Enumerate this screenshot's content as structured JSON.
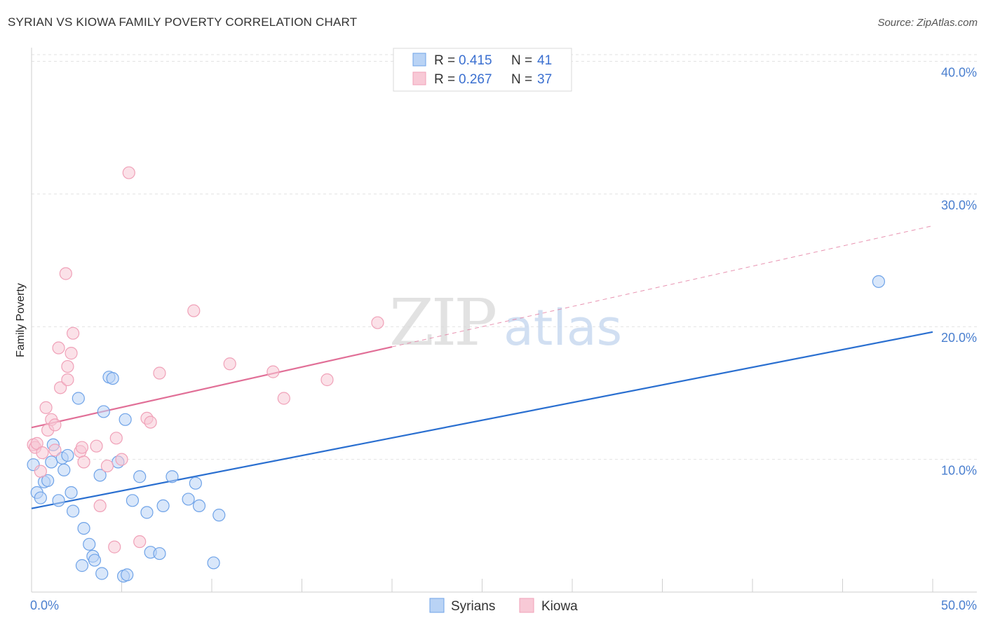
{
  "title": "SYRIAN VS KIOWA FAMILY POVERTY CORRELATION CHART",
  "source": "Source: ZipAtlas.com",
  "watermark": {
    "zip": "ZIP",
    "atlas": "atlas"
  },
  "chart_data": {
    "type": "scatter",
    "title": "SYRIAN VS KIOWA FAMILY POVERTY CORRELATION CHART",
    "xlabel": "",
    "ylabel": "Family Poverty",
    "xlim": [
      0,
      50
    ],
    "ylim": [
      0,
      40.5
    ],
    "x_tick_labels": [
      "0.0%",
      "50.0%"
    ],
    "y_ticks": [
      10,
      20,
      30,
      40
    ],
    "y_tick_labels": [
      "10.0%",
      "20.0%",
      "30.0%",
      "40.0%"
    ],
    "grid": true,
    "legend_position": "top-center",
    "legend": [
      {
        "r_label": "R =",
        "r_value": "0.415",
        "n_label": "N =",
        "n_value": "41"
      },
      {
        "r_label": "R =",
        "r_value": "0.267",
        "n_label": "N =",
        "n_value": "37"
      }
    ],
    "series": [
      {
        "name": "Syrians",
        "color": "#6fa3e8",
        "fill": "#b9d3f5",
        "line_color": "#2a6fd0",
        "trend": {
          "x0": 0,
          "y0": 6.3,
          "x1": 50,
          "y1": 19.6,
          "solid_until": 50
        },
        "points": [
          [
            0.1,
            9.6
          ],
          [
            0.3,
            7.5
          ],
          [
            0.5,
            7.1
          ],
          [
            0.7,
            8.3
          ],
          [
            0.9,
            8.4
          ],
          [
            1.1,
            9.8
          ],
          [
            1.2,
            11.1
          ],
          [
            1.5,
            6.9
          ],
          [
            1.7,
            10.1
          ],
          [
            1.8,
            9.2
          ],
          [
            2.0,
            10.3
          ],
          [
            2.2,
            7.5
          ],
          [
            2.3,
            6.1
          ],
          [
            2.6,
            14.6
          ],
          [
            2.9,
            4.8
          ],
          [
            2.8,
            2.0
          ],
          [
            3.2,
            3.6
          ],
          [
            3.4,
            2.7
          ],
          [
            3.5,
            2.4
          ],
          [
            3.8,
            8.8
          ],
          [
            4.0,
            13.6
          ],
          [
            3.9,
            1.4
          ],
          [
            4.3,
            16.2
          ],
          [
            4.5,
            16.1
          ],
          [
            4.8,
            9.8
          ],
          [
            5.1,
            1.2
          ],
          [
            5.3,
            1.3
          ],
          [
            5.2,
            13.0
          ],
          [
            5.6,
            6.9
          ],
          [
            6.0,
            8.7
          ],
          [
            6.4,
            6.0
          ],
          [
            6.6,
            3.0
          ],
          [
            7.1,
            2.9
          ],
          [
            7.3,
            6.5
          ],
          [
            7.8,
            8.7
          ],
          [
            8.7,
            7.0
          ],
          [
            9.1,
            8.2
          ],
          [
            9.3,
            6.5
          ],
          [
            10.1,
            2.2
          ],
          [
            10.4,
            5.8
          ],
          [
            47.0,
            23.4
          ]
        ]
      },
      {
        "name": "Kiowa",
        "color": "#f0a1b8",
        "fill": "#f8c9d6",
        "line_color": "#e16f97",
        "trend": {
          "x0": 0,
          "y0": 12.4,
          "x1": 50,
          "y1": 27.6,
          "solid_until": 20
        },
        "points": [
          [
            0.1,
            11.1
          ],
          [
            0.2,
            10.9
          ],
          [
            0.3,
            11.2
          ],
          [
            0.5,
            9.1
          ],
          [
            0.6,
            10.5
          ],
          [
            0.8,
            13.9
          ],
          [
            0.9,
            12.2
          ],
          [
            1.1,
            13.0
          ],
          [
            1.3,
            10.7
          ],
          [
            1.3,
            12.6
          ],
          [
            1.5,
            18.4
          ],
          [
            1.6,
            15.4
          ],
          [
            1.9,
            24.0
          ],
          [
            2.0,
            17.0
          ],
          [
            2.0,
            16.0
          ],
          [
            2.2,
            18.0
          ],
          [
            2.3,
            19.5
          ],
          [
            2.7,
            10.6
          ],
          [
            2.8,
            10.9
          ],
          [
            2.9,
            9.8
          ],
          [
            3.6,
            11.0
          ],
          [
            3.8,
            6.5
          ],
          [
            4.2,
            9.5
          ],
          [
            4.6,
            3.4
          ],
          [
            4.7,
            11.6
          ],
          [
            5.0,
            10.0
          ],
          [
            5.4,
            31.6
          ],
          [
            6.0,
            3.8
          ],
          [
            6.4,
            13.1
          ],
          [
            6.6,
            12.8
          ],
          [
            7.1,
            16.5
          ],
          [
            9.0,
            21.2
          ],
          [
            11.0,
            17.2
          ],
          [
            13.4,
            16.6
          ],
          [
            14.0,
            14.6
          ],
          [
            16.4,
            16.0
          ],
          [
            19.2,
            20.3
          ]
        ]
      }
    ]
  }
}
